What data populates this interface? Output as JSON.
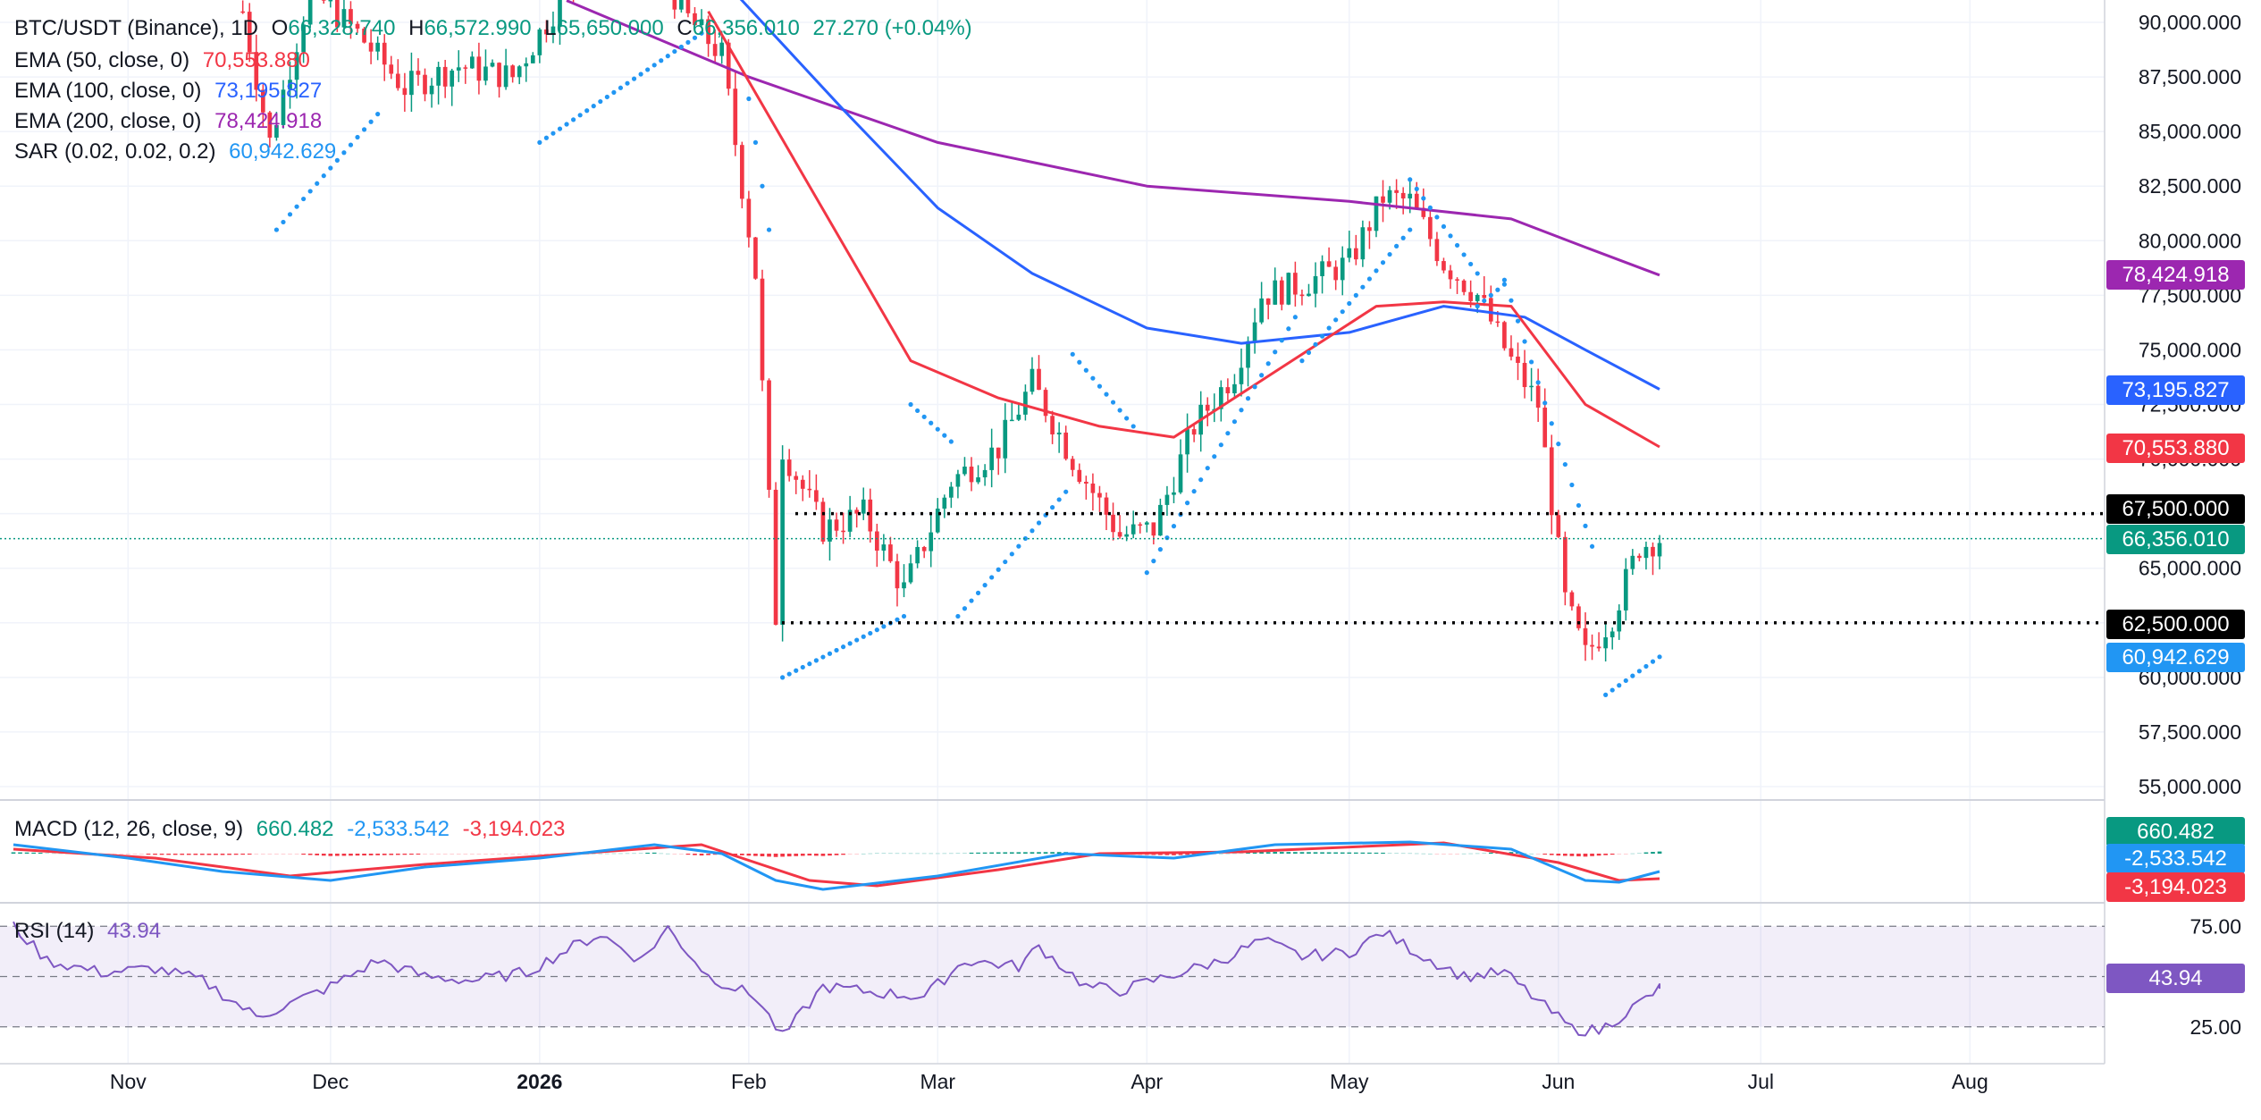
{
  "header": {
    "symbol": "BTC/USDT (Binance), 1D",
    "o_label": "O",
    "open": "66,328.740",
    "h_label": "H",
    "high": "66,572.990",
    "l_label": "L",
    "low": "65,650.000",
    "c_label": "C",
    "close": "66,356.010",
    "change": "27.270 (+0.04%)"
  },
  "indicators": {
    "ema50": {
      "label": "EMA (50, close, 0)",
      "value": "70,553.880",
      "color": "#f23645"
    },
    "ema100": {
      "label": "EMA (100, close, 0)",
      "value": "73,195.827",
      "color": "#2962ff"
    },
    "ema200": {
      "label": "EMA (200, close, 0)",
      "value": "78,424.918",
      "color": "#9c27b0"
    },
    "sar": {
      "label": "SAR (0.02, 0.02, 0.2)",
      "value": "60,942.629",
      "color": "#2196f3"
    }
  },
  "macd": {
    "label": "MACD (12, 26, close, 9)",
    "hist": "660.482",
    "macd": "-2,533.542",
    "signal": "-3,194.023"
  },
  "rsi": {
    "label": "RSI (14)",
    "value": "43.94",
    "upper": "75.00",
    "lower": "25.00"
  },
  "price_badges": {
    "ema200": "78,424.918",
    "ema100": "73,195.827",
    "ema50": "70,553.880",
    "level_high": "67,500.000",
    "last": "66,356.010",
    "level_low": "62,500.000",
    "sar": "60,942.629"
  },
  "colors": {
    "up": "#089981",
    "down": "#f23645",
    "ema50": "#f23645",
    "ema100": "#2962ff",
    "ema200": "#9c27b0",
    "sar": "#2196f3",
    "rsi": "#7e57c2"
  },
  "chart_data": {
    "type": "candlestick",
    "price_axis": {
      "ylim": [
        55000,
        90000
      ],
      "ticks": [
        "55,000.000",
        "57,500.000",
        "60,000.000",
        "62,500.000",
        "65,000.000",
        "67,500.000",
        "70,000.000",
        "72,500.000",
        "75,000.000",
        "77,500.000",
        "80,000.000",
        "82,500.000",
        "85,000.000",
        "87,500.000",
        "90,000.000"
      ]
    },
    "time_axis": {
      "labels": [
        "Nov",
        "Dec",
        "2026",
        "Feb",
        "Mar",
        "Apr",
        "May",
        "Jun",
        "Jul",
        "Aug"
      ],
      "bold": "2026"
    },
    "horizontal_levels": [
      67500,
      62500
    ],
    "months_days": [
      [
        "2025-10-15",
        30
      ],
      [
        "2025-11-01",
        30
      ],
      [
        "2025-12-01",
        31
      ],
      [
        "2026-01-01",
        31
      ],
      [
        "2026-02-01",
        28
      ],
      [
        "2026-03-01",
        31
      ],
      [
        "2026-04-01",
        30
      ],
      [
        "2026-05-01",
        31
      ],
      [
        "2026-06-01",
        30
      ]
    ],
    "close_path": [
      [
        "2025-11-18",
        90500
      ],
      [
        "2025-11-22",
        84500
      ],
      [
        "2025-11-28",
        91500
      ],
      [
        "2025-12-05",
        89500
      ],
      [
        "2025-12-12",
        87000
      ],
      [
        "2025-12-20",
        88000
      ],
      [
        "2025-12-28",
        87500
      ],
      [
        "2026-01-05",
        91500
      ],
      [
        "2026-01-15",
        95500
      ],
      [
        "2026-01-22",
        90500
      ],
      [
        "2026-01-28",
        88500
      ],
      [
        "2026-02-02",
        78500
      ],
      [
        "2026-02-05",
        62800
      ],
      [
        "2026-02-06",
        70500
      ],
      [
        "2026-02-12",
        66800
      ],
      [
        "2026-02-18",
        67500
      ],
      [
        "2026-02-24",
        64000
      ],
      [
        "2026-03-03",
        69000
      ],
      [
        "2026-03-10",
        70500
      ],
      [
        "2026-03-15",
        73500
      ],
      [
        "2026-03-21",
        70000
      ],
      [
        "2026-03-28",
        66500
      ],
      [
        "2026-04-02",
        66800
      ],
      [
        "2026-04-08",
        71500
      ],
      [
        "2026-04-14",
        74000
      ],
      [
        "2026-04-18",
        77500
      ],
      [
        "2026-04-24",
        78000
      ],
      [
        "2026-05-01",
        79000
      ],
      [
        "2026-05-06",
        82000
      ],
      [
        "2026-05-10",
        81800
      ],
      [
        "2026-05-15",
        79000
      ],
      [
        "2026-05-20",
        77500
      ],
      [
        "2026-05-25",
        74500
      ],
      [
        "2026-05-29",
        72500
      ],
      [
        "2026-06-02",
        63500
      ],
      [
        "2026-06-05",
        61000
      ],
      [
        "2026-06-09",
        62800
      ],
      [
        "2026-06-13",
        66000
      ],
      [
        "2026-06-16",
        66356
      ]
    ],
    "ema50_path": [
      [
        "2026-01-26",
        90500
      ],
      [
        "2026-02-10",
        82500
      ],
      [
        "2026-02-25",
        74500
      ],
      [
        "2026-03-10",
        72800
      ],
      [
        "2026-03-25",
        71500
      ],
      [
        "2026-04-05",
        71000
      ],
      [
        "2026-04-20",
        74000
      ],
      [
        "2026-05-05",
        77000
      ],
      [
        "2026-05-15",
        77200
      ],
      [
        "2026-05-25",
        77000
      ],
      [
        "2026-06-05",
        72500
      ],
      [
        "2026-06-16",
        70554
      ]
    ],
    "ema100_path": [
      [
        "2026-01-28",
        92000
      ],
      [
        "2026-02-15",
        86000
      ],
      [
        "2026-03-01",
        81500
      ],
      [
        "2026-03-15",
        78500
      ],
      [
        "2026-04-01",
        76000
      ],
      [
        "2026-04-15",
        75300
      ],
      [
        "2026-05-01",
        75800
      ],
      [
        "2026-05-15",
        77000
      ],
      [
        "2026-05-27",
        76500
      ],
      [
        "2026-06-05",
        75000
      ],
      [
        "2026-06-16",
        73196
      ]
    ],
    "ema200_path": [
      [
        "2026-01-05",
        91000
      ],
      [
        "2026-02-01",
        87500
      ],
      [
        "2026-03-01",
        84500
      ],
      [
        "2026-04-01",
        82500
      ],
      [
        "2026-05-01",
        81800
      ],
      [
        "2026-05-25",
        81000
      ],
      [
        "2026-06-05",
        79700
      ],
      [
        "2026-06-16",
        78425
      ]
    ],
    "sar_segments": [
      [
        [
          "2025-11-23",
          80500
        ],
        [
          "2025-12-08",
          85800
        ]
      ],
      [
        [
          "2026-01-01",
          84500
        ],
        [
          "2026-01-25",
          89500
        ]
      ],
      [
        [
          "2026-02-01",
          86500
        ],
        [
          "2026-02-04",
          80500
        ]
      ],
      [
        [
          "2026-02-06",
          60000
        ],
        [
          "2026-02-24",
          62800
        ]
      ],
      [
        [
          "2026-02-25",
          72500
        ],
        [
          "2026-03-03",
          70800
        ]
      ],
      [
        [
          "2026-03-04",
          62800
        ],
        [
          "2026-03-20",
          68500
        ]
      ],
      [
        [
          "2026-03-21",
          74800
        ],
        [
          "2026-03-30",
          71500
        ]
      ],
      [
        [
          "2026-04-01",
          64800
        ],
        [
          "2026-04-23",
          76500
        ]
      ],
      [
        [
          "2026-04-24",
          74500
        ],
        [
          "2026-05-10",
          80500
        ]
      ],
      [
        [
          "2026-05-10",
          82800
        ],
        [
          "2026-05-20",
          78500
        ]
      ],
      [
        [
          "2026-05-20",
          77000
        ],
        [
          "2026-05-24",
          78000
        ]
      ],
      [
        [
          "2026-05-24",
          78200
        ],
        [
          "2026-06-06",
          66000
        ]
      ],
      [
        [
          "2026-06-08",
          59200
        ],
        [
          "2026-06-16",
          60943
        ]
      ]
    ],
    "macd_path": [
      [
        "2025-10-15",
        60
      ],
      [
        "2025-11-01",
        45
      ],
      [
        "2025-11-15",
        30
      ],
      [
        "2025-12-01",
        20
      ],
      [
        "2025-12-15",
        35
      ],
      [
        "2026-01-01",
        45
      ],
      [
        "2026-01-18",
        60
      ],
      [
        "2026-01-28",
        50
      ],
      [
        "2026-02-05",
        20
      ],
      [
        "2026-02-12",
        10
      ],
      [
        "2026-03-01",
        25
      ],
      [
        "2026-03-20",
        50
      ],
      [
        "2026-04-05",
        45
      ],
      [
        "2026-04-20",
        60
      ],
      [
        "2026-05-10",
        63
      ],
      [
        "2026-05-25",
        55
      ],
      [
        "2026-06-05",
        20
      ],
      [
        "2026-06-10",
        18
      ],
      [
        "2026-06-16",
        30
      ]
    ],
    "signal_path": [
      [
        "2025-10-15",
        55
      ],
      [
        "2025-11-05",
        45
      ],
      [
        "2025-11-25",
        25
      ],
      [
        "2025-12-15",
        38
      ],
      [
        "2026-01-10",
        52
      ],
      [
        "2026-01-25",
        60
      ],
      [
        "2026-02-10",
        20
      ],
      [
        "2026-02-20",
        14
      ],
      [
        "2026-03-10",
        32
      ],
      [
        "2026-03-25",
        50
      ],
      [
        "2026-04-15",
        52
      ],
      [
        "2026-05-15",
        62
      ],
      [
        "2026-06-01",
        40
      ],
      [
        "2026-06-10",
        20
      ],
      [
        "2026-06-16",
        22
      ]
    ],
    "rsi_path": [
      [
        "2025-10-15",
        75
      ],
      [
        "2025-10-20",
        58
      ],
      [
        "2025-10-28",
        52
      ],
      [
        "2025-11-05",
        54
      ],
      [
        "2025-11-12",
        48
      ],
      [
        "2025-11-20",
        30
      ],
      [
        "2025-11-24",
        35
      ],
      [
        "2025-12-01",
        45
      ],
      [
        "2025-12-08",
        58
      ],
      [
        "2025-12-15",
        50
      ],
      [
        "2025-12-22",
        48
      ],
      [
        "2025-12-30",
        52
      ],
      [
        "2026-01-06",
        65
      ],
      [
        "2026-01-10",
        71
      ],
      [
        "2026-01-16",
        58
      ],
      [
        "2026-01-20",
        74
      ],
      [
        "2026-01-26",
        50
      ],
      [
        "2026-02-02",
        40
      ],
      [
        "2026-02-06",
        20
      ],
      [
        "2026-02-12",
        45
      ],
      [
        "2026-02-20",
        42
      ],
      [
        "2026-02-27",
        40
      ],
      [
        "2026-03-05",
        58
      ],
      [
        "2026-03-13",
        55
      ],
      [
        "2026-03-16",
        65
      ],
      [
        "2026-03-23",
        45
      ],
      [
        "2026-03-28",
        43
      ],
      [
        "2026-04-04",
        50
      ],
      [
        "2026-04-12",
        58
      ],
      [
        "2026-04-18",
        68
      ],
      [
        "2026-04-24",
        60
      ],
      [
        "2026-05-01",
        62
      ],
      [
        "2026-05-06",
        72
      ],
      [
        "2026-05-12",
        60
      ],
      [
        "2026-05-18",
        50
      ],
      [
        "2026-05-24",
        52
      ],
      [
        "2026-05-30",
        35
      ],
      [
        "2026-06-03",
        24
      ],
      [
        "2026-06-07",
        23
      ],
      [
        "2026-06-11",
        32
      ],
      [
        "2026-06-16",
        43.94
      ]
    ]
  }
}
